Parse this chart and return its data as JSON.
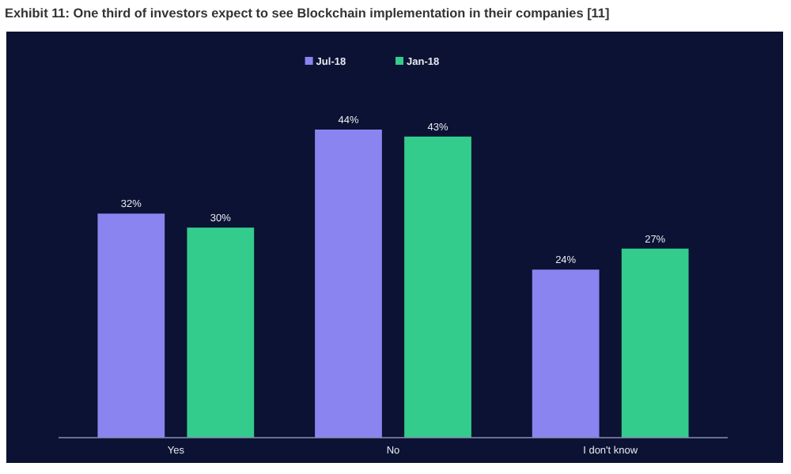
{
  "chart_data": {
    "type": "bar",
    "title": "Exhibit 11: One third of investors expect to see Blockchain implementation in their companies [11]",
    "categories": [
      "Yes",
      "No",
      "I don't know"
    ],
    "series": [
      {
        "name": "Jul-18",
        "color": "#8a84f0",
        "values": [
          32,
          44,
          24
        ],
        "value_labels": [
          "32%",
          "44%",
          "24%"
        ]
      },
      {
        "name": "Jan-18",
        "color": "#33cc8c",
        "values": [
          30,
          43,
          27
        ],
        "value_labels": [
          "30%",
          "43%",
          "27%"
        ]
      }
    ],
    "legend": "top"
  }
}
